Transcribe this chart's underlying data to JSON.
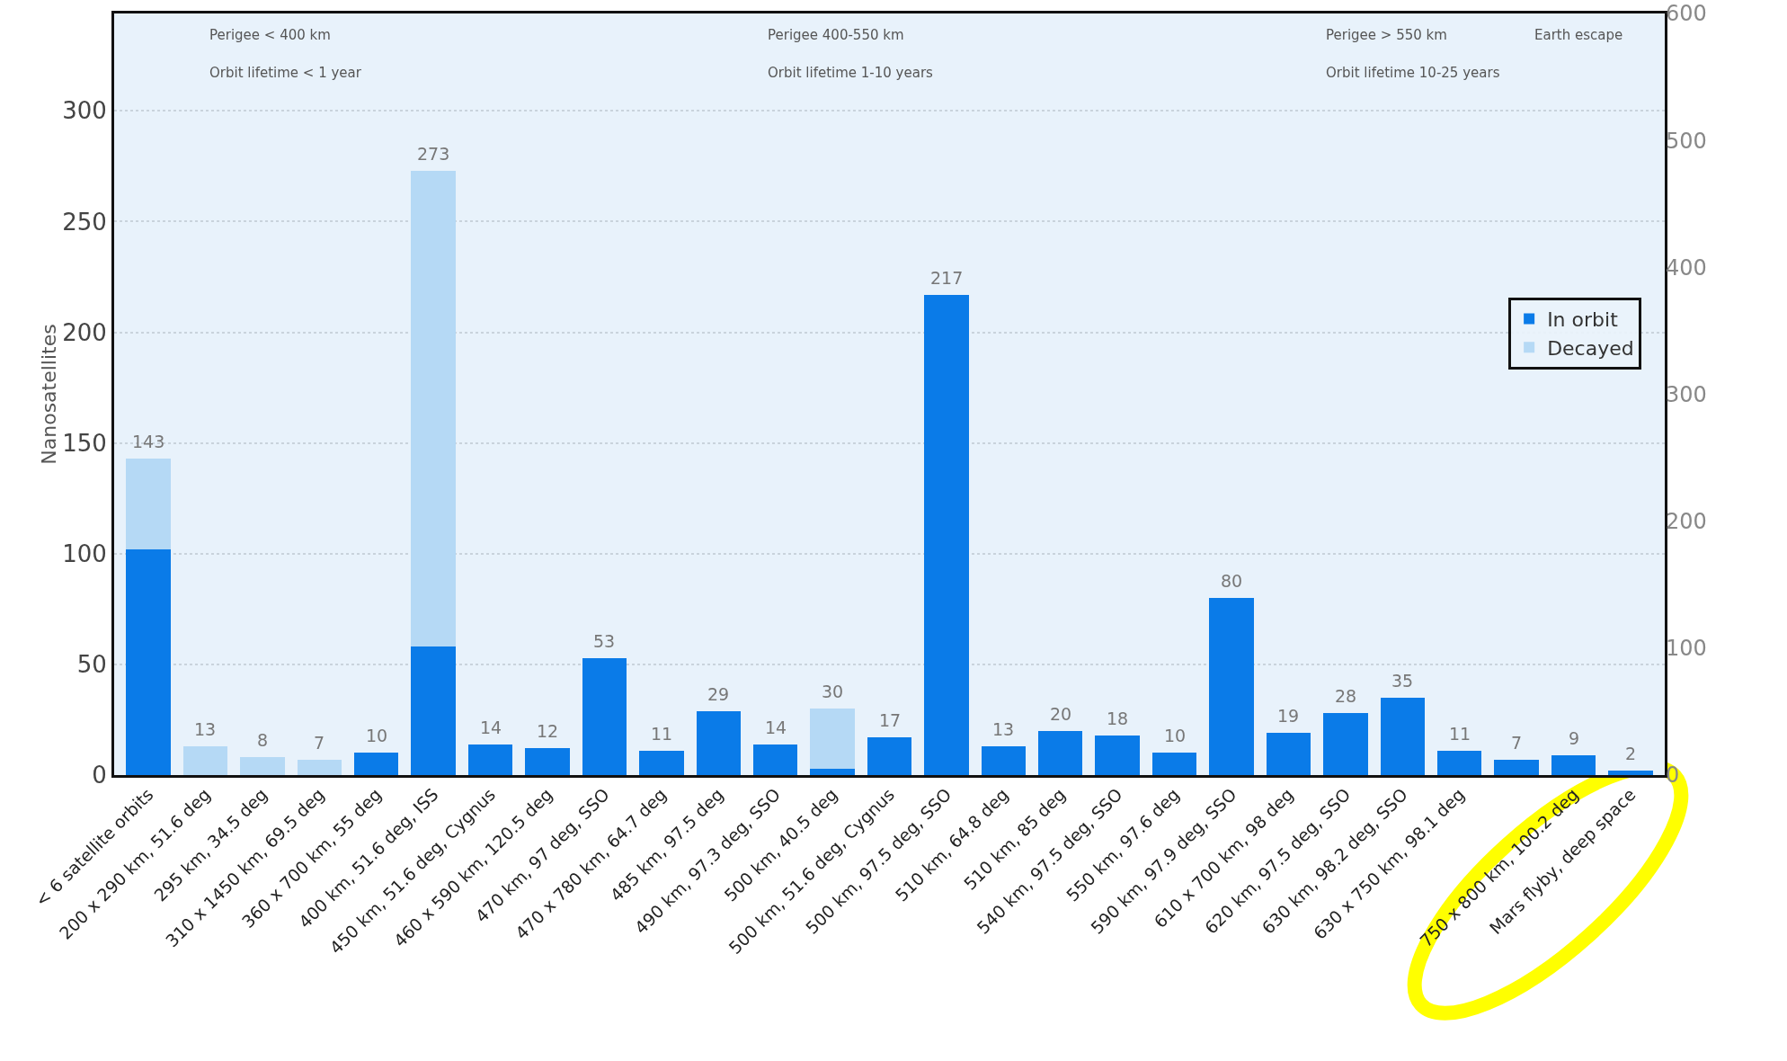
{
  "chart_data": {
    "type": "bar",
    "stacked": true,
    "ylabel": "Nanosatellites",
    "categories": [
      "< 6 satellite orbits",
      "200 x 290 km, 51.6 deg",
      "295 km, 34.5 deg",
      "310 x 1450 km, 69.5 deg",
      "360 x 700 km, 55 deg",
      "400 km, 51.6 deg, ISS",
      "450 km, 51.6 deg, Cygnus",
      "460 x 590 km, 120.5 deg",
      "470 km, 97 deg, SSO",
      "470 x 780 km, 64.7 deg",
      "485 km, 97.5 deg",
      "490 km, 97.3 deg, SSO",
      "500 km, 40.5 deg",
      "500 km, 51.6 deg, Cygnus",
      "500 km, 97.5 deg, SSO",
      "510 km, 64.8 deg",
      "510 km, 85 deg",
      "540 km, 97.5 deg, SSO",
      "550 km, 97.6 deg",
      "590 km, 97.9 deg, SSO",
      "610 x 700 km, 98 deg",
      "620 km, 97.5 deg, SSO",
      "630 km, 98.2 deg, SSO",
      "630 x 750 km, 98.1 deg",
      null,
      "750 x 800 km, 100.2 deg",
      "Mars flyby, deep space"
    ],
    "series": [
      {
        "name": "In orbit",
        "color": "#0a7be8",
        "values": [
          102,
          0,
          0,
          0,
          10,
          58,
          14,
          12,
          53,
          11,
          29,
          14,
          3,
          17,
          217,
          13,
          20,
          18,
          10,
          80,
          19,
          28,
          35,
          11,
          7,
          9,
          2
        ]
      },
      {
        "name": "Decayed",
        "color": "#b5d9f5",
        "values": [
          41,
          13,
          8,
          7,
          0,
          215,
          0,
          0,
          0,
          0,
          0,
          0,
          27,
          0,
          0,
          0,
          0,
          0,
          0,
          0,
          0,
          0,
          0,
          0,
          0,
          0,
          0
        ]
      }
    ],
    "totals": [
      "143",
      "13",
      "8",
      "7",
      "10",
      "273",
      "14",
      "12",
      "53",
      "11",
      "29",
      "14",
      "30",
      "17",
      "217",
      "13",
      "20",
      "18",
      "10",
      "80",
      "19",
      "28",
      "35",
      "11",
      "7",
      "9",
      "2"
    ],
    "ylim": [
      0,
      344
    ],
    "yticks": [
      0,
      50,
      100,
      150,
      200,
      250,
      300
    ],
    "y2lim": [
      0,
      600
    ],
    "y2ticks": [
      0,
      100,
      200,
      300,
      400,
      500,
      600
    ],
    "grid": "y",
    "legend": "right",
    "annotations": [
      "Perigee < 400 km",
      "Orbit lifetime < 1 year",
      "Perigee 400-550 km",
      "Orbit lifetime 1-10 years",
      "Perigee > 550 km",
      "Orbit lifetime 10-25 years",
      "Earth escape"
    ]
  }
}
